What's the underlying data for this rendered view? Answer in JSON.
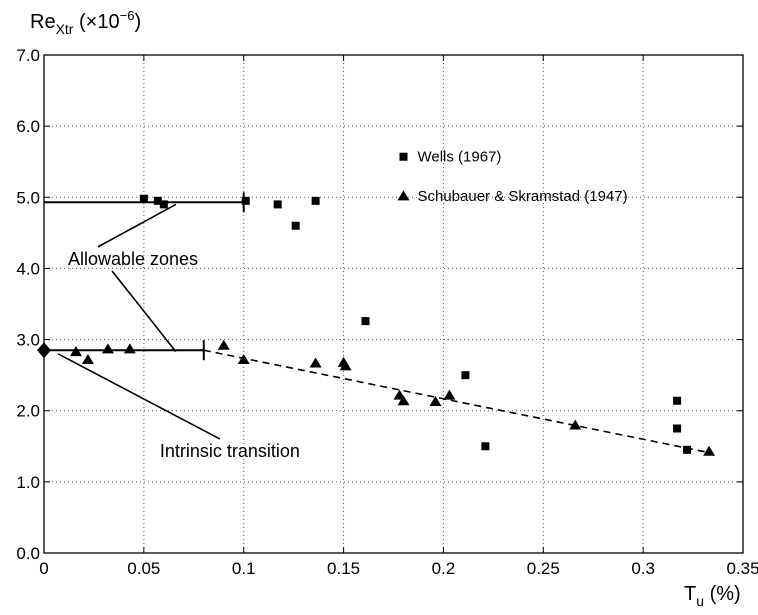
{
  "chart_data": {
    "type": "scatter",
    "ylabel": {
      "base": "Re",
      "sub": "Xtr",
      "rest": " (×10",
      "exp": "−6",
      "close": ")"
    },
    "xlabel": {
      "base": "T",
      "sub": "u",
      "rest": " (%)"
    },
    "xlim": [
      0,
      0.35
    ],
    "ylim": [
      0,
      7
    ],
    "grid": true,
    "xticks": [
      0,
      0.05,
      0.1,
      0.15,
      0.2,
      0.25,
      0.3,
      0.35
    ],
    "xtick_labels": [
      "0",
      "0.05",
      "0.1",
      "0.15",
      "0.2",
      "0.25",
      "0.3",
      "0.35"
    ],
    "yticks": [
      0,
      1,
      2,
      3,
      4,
      5,
      6,
      7
    ],
    "ytick_labels": [
      "0.0",
      "1.0",
      "2.0",
      "3.0",
      "4.0",
      "5.0",
      "6.0",
      "7.0"
    ],
    "legend_position": "right",
    "series": [
      {
        "name": "Wells (1967)",
        "marker": "square",
        "points": [
          [
            0.05,
            4.98
          ],
          [
            0.057,
            4.95
          ],
          [
            0.06,
            4.9
          ],
          [
            0.101,
            4.95
          ],
          [
            0.117,
            4.9
          ],
          [
            0.126,
            4.6
          ],
          [
            0.136,
            4.95
          ],
          [
            0.161,
            3.26
          ],
          [
            0.211,
            2.5
          ],
          [
            0.221,
            1.5
          ],
          [
            0.317,
            2.14
          ],
          [
            0.317,
            1.75
          ],
          [
            0.322,
            1.45
          ]
        ]
      },
      {
        "name": "Schubauer & Skramstad (1947)",
        "marker": "triangle",
        "points": [
          [
            0.016,
            2.83
          ],
          [
            0.022,
            2.72
          ],
          [
            0.032,
            2.87
          ],
          [
            0.043,
            2.87
          ],
          [
            0.09,
            2.92
          ],
          [
            0.1,
            2.72
          ],
          [
            0.136,
            2.67
          ],
          [
            0.15,
            2.68
          ],
          [
            0.151,
            2.63
          ],
          [
            0.178,
            2.22
          ],
          [
            0.18,
            2.14
          ],
          [
            0.196,
            2.13
          ],
          [
            0.203,
            2.22
          ],
          [
            0.266,
            1.8
          ],
          [
            0.333,
            1.43
          ]
        ]
      }
    ],
    "trend_line": {
      "style": "dashed",
      "points": [
        [
          0.08,
          2.85
        ],
        [
          0.335,
          1.4
        ]
      ]
    },
    "allowable_zone_lines": [
      {
        "x": [
          0,
          0.1
        ],
        "y": 4.93
      },
      {
        "x": [
          0,
          0.08
        ],
        "y": 2.85
      }
    ],
    "intrinsic_point": {
      "x": 0,
      "y": 2.85,
      "marker": "diamond"
    },
    "annotations": [
      {
        "text": "Allowable zones",
        "anchor": [
          0.012,
          4.05
        ],
        "pointers": [
          [
            0.066,
            4.9
          ],
          [
            0.066,
            2.83
          ]
        ]
      },
      {
        "text": "Intrinsic transition",
        "anchor": [
          0.058,
          1.35
        ],
        "pointers": [
          [
            0.007,
            2.8
          ]
        ]
      }
    ]
  }
}
